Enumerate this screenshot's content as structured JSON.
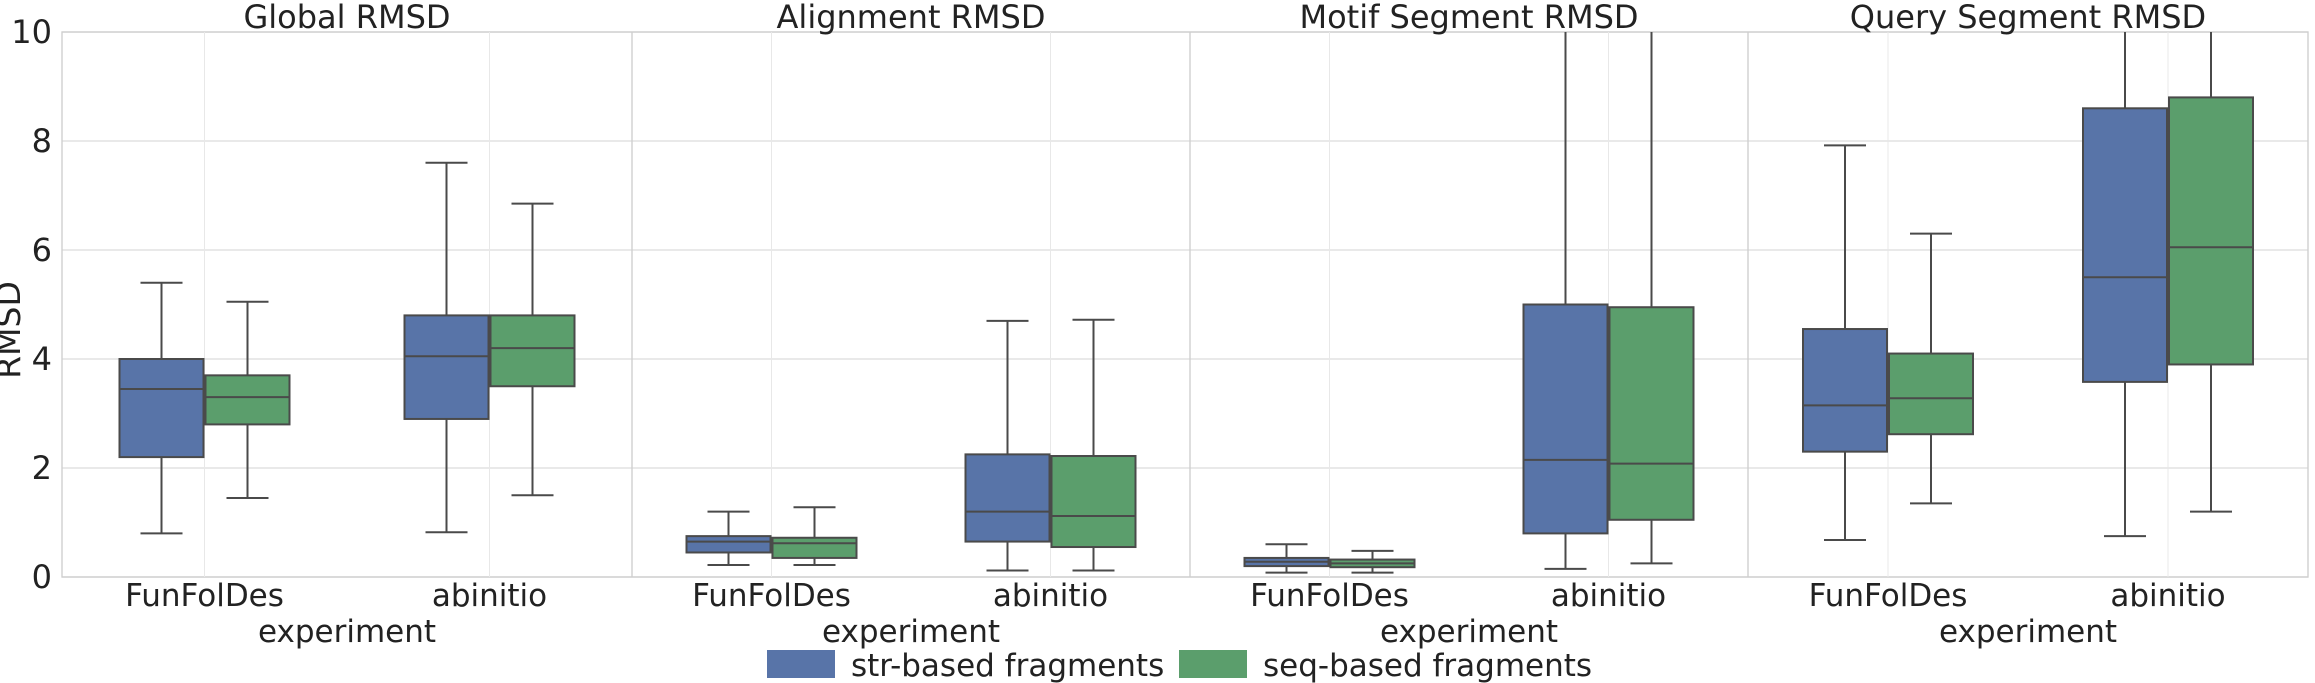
{
  "chart_data": {
    "type": "boxplot",
    "ylabel": "RMSD",
    "ylim": [
      0,
      10
    ],
    "yticks": [
      0,
      2,
      4,
      6,
      8,
      10
    ],
    "grid": true,
    "legend_position": "bottom-center",
    "categories": [
      "FunFolDes",
      "abinitio"
    ],
    "xlabel": "experiment",
    "series": [
      {
        "name": "str-based fragments",
        "color": "#5874a8"
      },
      {
        "name": "seq-based fragments",
        "color": "#5b9e6c"
      }
    ],
    "panels": [
      {
        "title": "Global RMSD",
        "boxes": [
          [
            {
              "whislo": 0.8,
              "q1": 2.2,
              "med": 3.45,
              "q3": 4.0,
              "whishi": 5.4
            },
            {
              "whislo": 1.45,
              "q1": 2.8,
              "med": 3.3,
              "q3": 3.7,
              "whishi": 5.05
            }
          ],
          [
            {
              "whislo": 0.82,
              "q1": 2.9,
              "med": 4.05,
              "q3": 4.8,
              "whishi": 7.6
            },
            {
              "whislo": 1.5,
              "q1": 3.5,
              "med": 4.2,
              "q3": 4.8,
              "whishi": 6.85
            }
          ]
        ]
      },
      {
        "title": "Alignment RMSD",
        "boxes": [
          [
            {
              "whislo": 0.22,
              "q1": 0.45,
              "med": 0.65,
              "q3": 0.75,
              "whishi": 1.2
            },
            {
              "whislo": 0.22,
              "q1": 0.35,
              "med": 0.62,
              "q3": 0.72,
              "whishi": 1.28
            }
          ],
          [
            {
              "whislo": 0.12,
              "q1": 0.65,
              "med": 1.2,
              "q3": 2.25,
              "whishi": 4.7
            },
            {
              "whislo": 0.12,
              "q1": 0.55,
              "med": 1.12,
              "q3": 2.22,
              "whishi": 4.72
            }
          ]
        ]
      },
      {
        "title": "Motif Segment RMSD",
        "boxes": [
          [
            {
              "whislo": 0.08,
              "q1": 0.2,
              "med": 0.28,
              "q3": 0.35,
              "whishi": 0.6
            },
            {
              "whislo": 0.08,
              "q1": 0.18,
              "med": 0.25,
              "q3": 0.32,
              "whishi": 0.48
            }
          ],
          [
            {
              "whislo": 0.15,
              "q1": 0.8,
              "med": 2.15,
              "q3": 5.0,
              "whishi": 10.5
            },
            {
              "whislo": 0.25,
              "q1": 1.05,
              "med": 2.08,
              "q3": 4.95,
              "whishi": 10.5
            }
          ]
        ]
      },
      {
        "title": "Query Segment RMSD",
        "boxes": [
          [
            {
              "whislo": 0.68,
              "q1": 2.3,
              "med": 3.15,
              "q3": 4.55,
              "whishi": 7.92
            },
            {
              "whislo": 1.35,
              "q1": 2.62,
              "med": 3.28,
              "q3": 4.1,
              "whishi": 6.3
            }
          ],
          [
            {
              "whislo": 0.75,
              "q1": 3.58,
              "med": 5.5,
              "q3": 8.6,
              "whishi": 10.5
            },
            {
              "whislo": 1.2,
              "q1": 3.9,
              "med": 6.05,
              "q3": 8.8,
              "whishi": 10.5
            }
          ]
        ]
      }
    ]
  }
}
